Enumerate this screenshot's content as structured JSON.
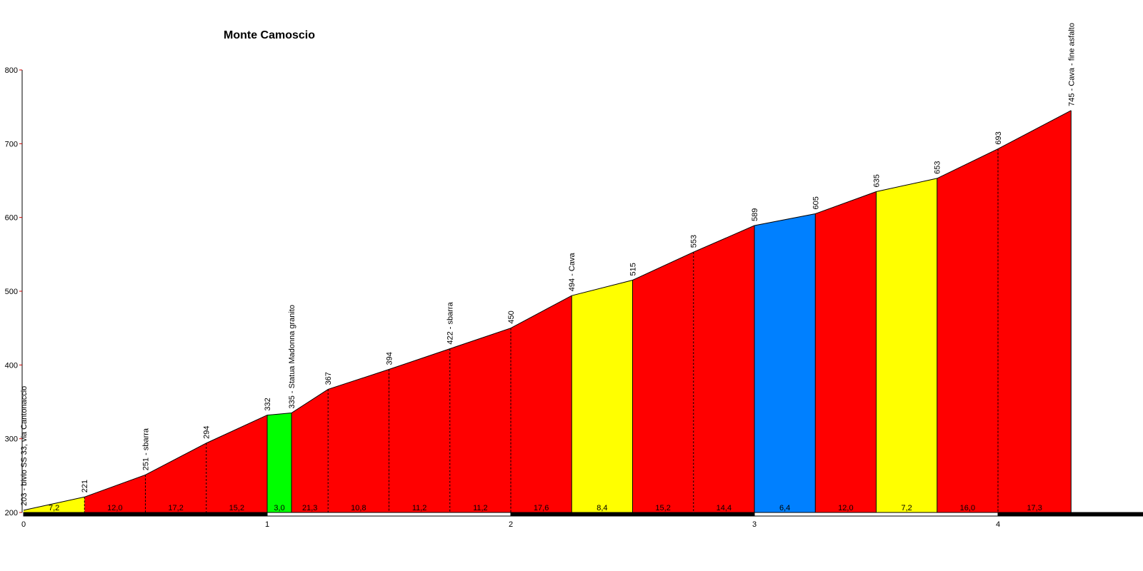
{
  "chart_data": {
    "type": "area",
    "title": "Monte Camoscio",
    "xlabel": "",
    "ylabel": "",
    "xlim": [
      0,
      4.5
    ],
    "ylim": [
      200,
      800
    ],
    "x_ticks": [
      "0",
      "1",
      "2",
      "3",
      "4"
    ],
    "y_ticks": [
      "200",
      "300",
      "400",
      "500",
      "600",
      "700",
      "800"
    ],
    "grid": false,
    "points": [
      {
        "x": 0.0,
        "elev": 203,
        "label": "203 - bivio SS 33, via Cantonaccio"
      },
      {
        "x": 0.25,
        "elev": 221,
        "label": "221"
      },
      {
        "x": 0.5,
        "elev": 251,
        "label": "251 - sbarra"
      },
      {
        "x": 0.75,
        "elev": 294,
        "label": "294"
      },
      {
        "x": 1.0,
        "elev": 332,
        "label": "332"
      },
      {
        "x": 1.1,
        "elev": 335,
        "label": "335 - Statua Madonna granito"
      },
      {
        "x": 1.25,
        "elev": 367,
        "label": "367"
      },
      {
        "x": 1.5,
        "elev": 394,
        "label": "394"
      },
      {
        "x": 1.75,
        "elev": 422,
        "label": "422 - sbarra"
      },
      {
        "x": 2.0,
        "elev": 450,
        "label": "450"
      },
      {
        "x": 2.25,
        "elev": 494,
        "label": "494 - Cava"
      },
      {
        "x": 2.5,
        "elev": 515,
        "label": "515"
      },
      {
        "x": 2.75,
        "elev": 553,
        "label": "553"
      },
      {
        "x": 3.0,
        "elev": 589,
        "label": "589"
      },
      {
        "x": 3.25,
        "elev": 605,
        "label": "605"
      },
      {
        "x": 3.5,
        "elev": 635,
        "label": "635"
      },
      {
        "x": 3.75,
        "elev": 653,
        "label": "653"
      },
      {
        "x": 4.0,
        "elev": 693,
        "label": "693"
      },
      {
        "x": 4.3,
        "elev": 745,
        "label": "745 - Cava - fine asfalto"
      }
    ],
    "segments": [
      {
        "gradient": "7,2",
        "color": "#ffff00"
      },
      {
        "gradient": "12,0",
        "color": "#ff0000"
      },
      {
        "gradient": "17,2",
        "color": "#ff0000"
      },
      {
        "gradient": "15,2",
        "color": "#ff0000"
      },
      {
        "gradient": "3,0",
        "color": "#00ff00"
      },
      {
        "gradient": "21,3",
        "color": "#ff0000"
      },
      {
        "gradient": "10,8",
        "color": "#ff0000"
      },
      {
        "gradient": "11,2",
        "color": "#ff0000"
      },
      {
        "gradient": "11,2",
        "color": "#ff0000"
      },
      {
        "gradient": "17,6",
        "color": "#ff0000"
      },
      {
        "gradient": "8,4",
        "color": "#ffff00"
      },
      {
        "gradient": "15,2",
        "color": "#ff0000"
      },
      {
        "gradient": "14,4",
        "color": "#ff0000"
      },
      {
        "gradient": "6,4",
        "color": "#0080ff"
      },
      {
        "gradient": "12,0",
        "color": "#ff0000"
      },
      {
        "gradient": "7,2",
        "color": "#ffff00"
      },
      {
        "gradient": "16,0",
        "color": "#ff0000"
      },
      {
        "gradient": "17,3",
        "color": "#ff0000"
      }
    ]
  }
}
